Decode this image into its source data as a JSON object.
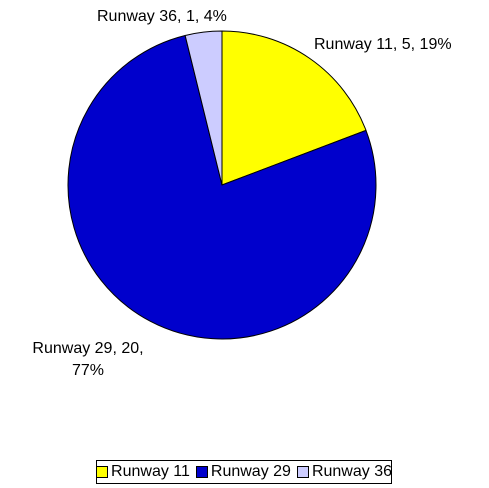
{
  "chart_data": {
    "type": "pie",
    "title": "",
    "categories": [
      "Runway 11",
      "Runway 29",
      "Runway 36"
    ],
    "values": [
      5,
      20,
      1
    ],
    "percentages": [
      19,
      77,
      4
    ],
    "colors": [
      "#ffff00",
      "#0000cc",
      "#ccccff"
    ],
    "data_labels": {
      "r11": "Runway 11, 5, 19%",
      "r29_line1": "Runway 29, 20,",
      "r29_line2": "77%",
      "r36": "Runway 36, 1, 4%"
    },
    "legend": {
      "position": "bottom",
      "items": [
        "Runway 11",
        "Runway 29",
        "Runway 36"
      ]
    },
    "start_angle_deg": 0,
    "direction": "clockwise"
  }
}
